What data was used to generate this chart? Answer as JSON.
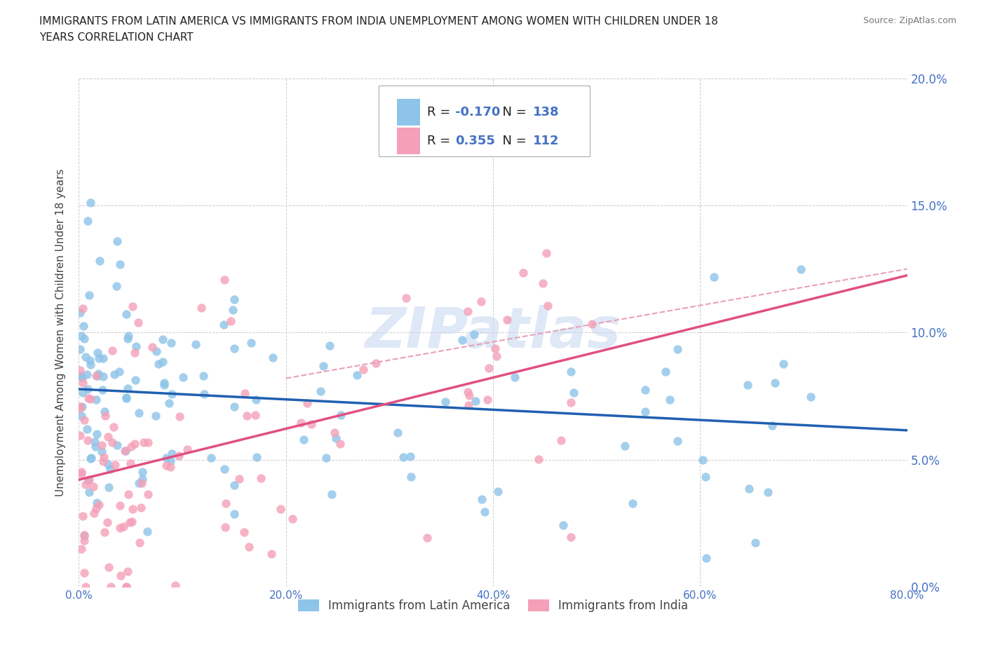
{
  "title_line1": "IMMIGRANTS FROM LATIN AMERICA VS IMMIGRANTS FROM INDIA UNEMPLOYMENT AMONG WOMEN WITH CHILDREN UNDER 18",
  "title_line2": "YEARS CORRELATION CHART",
  "source": "Source: ZipAtlas.com",
  "xlabel_ticks": [
    "0.0%",
    "20.0%",
    "40.0%",
    "60.0%",
    "80.0%"
  ],
  "ylabel_ticks": [
    "0.0%",
    "5.0%",
    "10.0%",
    "15.0%",
    "20.0%"
  ],
  "xmin": 0.0,
  "xmax": 0.8,
  "ymin": 0.0,
  "ymax": 0.2,
  "ylabel": "Unemployment Among Women with Children Under 18 years",
  "legend_label1": "Immigrants from Latin America",
  "legend_label2": "Immigrants from India",
  "R1": -0.17,
  "N1": 138,
  "R2": 0.355,
  "N2": 112,
  "color1": "#8ec4e8",
  "color2": "#f4a0b8",
  "color1_line": "#2060b0",
  "color2_line": "#e05080",
  "color2_dashed": "#e8a0b8",
  "tick_color": "#4472c4",
  "watermark_color": "#c8daf0",
  "background_color": "#ffffff",
  "grid_color": "#cccccc",
  "seed": 42
}
